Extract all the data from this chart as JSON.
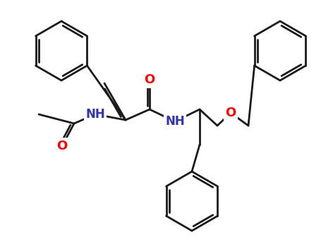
{
  "background_color": "#ffffff",
  "bond_color": "#1a1a1a",
  "line_width": 2.0,
  "atom_colors": {
    "N": "#3333aa",
    "O": "#ff0000",
    "C": "#1a1a1a"
  },
  "figsize": [
    4.55,
    3.5
  ],
  "dpi": 100,
  "xlim": [
    0,
    455
  ],
  "ylim": [
    0,
    350
  ]
}
